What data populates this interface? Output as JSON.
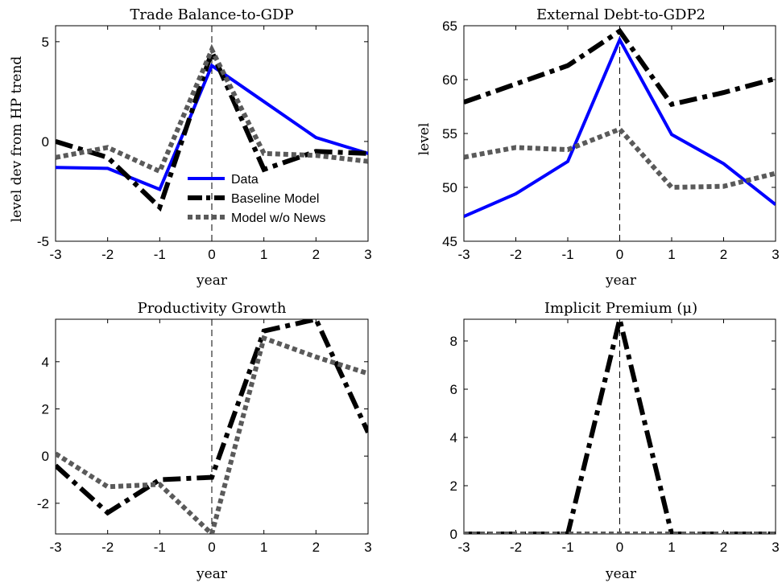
{
  "chart_data": [
    {
      "type": "line",
      "title": "Trade Balance-to-GDP",
      "xlabel": "year",
      "ylabel": "level dev from HP trend",
      "xlim": [
        -3,
        3
      ],
      "ylim": [
        -5,
        5.8
      ],
      "xticks": [
        "-3",
        "-2",
        "-1",
        "0",
        "1",
        "2",
        "3"
      ],
      "yticks": [
        -5,
        0,
        5
      ],
      "ytick_labels": [
        "-5",
        "0",
        "5"
      ],
      "x": [
        -3,
        -2,
        -1,
        0,
        1,
        2,
        3
      ],
      "legend": "inside lower-center",
      "series": [
        {
          "name": "Data",
          "style": "solid",
          "color": "#0000ff",
          "values": [
            -1.3,
            -1.35,
            -2.4,
            3.8,
            2.0,
            0.2,
            -0.6
          ]
        },
        {
          "name": "Baseline Model",
          "style": "dashdot",
          "color": "#000000",
          "values": [
            0.0,
            -0.8,
            -3.3,
            4.5,
            -1.4,
            -0.5,
            -0.6
          ]
        },
        {
          "name": "Model w/o News",
          "style": "dotted",
          "color": "#5a5a5a",
          "values": [
            -0.8,
            -0.3,
            -1.5,
            4.6,
            -0.6,
            -0.7,
            -1.0
          ]
        }
      ]
    },
    {
      "type": "line",
      "title": "External Debt-to-GDP2",
      "xlabel": "year",
      "ylabel": "level",
      "xlim": [
        -3,
        3
      ],
      "ylim": [
        45,
        65
      ],
      "xticks": [
        "-3",
        "-2",
        "-1",
        "0",
        "1",
        "2",
        "3"
      ],
      "yticks": [
        45,
        50,
        55,
        60,
        65
      ],
      "ytick_labels": [
        "45",
        "50",
        "55",
        "60",
        "65"
      ],
      "x": [
        -3,
        -2,
        -1,
        0,
        1,
        2,
        3
      ],
      "series": [
        {
          "style": "solid",
          "color": "#0000ff",
          "values": [
            47.3,
            49.4,
            52.4,
            63.7,
            54.9,
            52.2,
            48.4
          ]
        },
        {
          "style": "dashdot",
          "color": "#000000",
          "values": [
            57.9,
            59.6,
            61.3,
            64.5,
            57.7,
            58.8,
            60.1
          ]
        },
        {
          "style": "dotted",
          "color": "#5a5a5a",
          "values": [
            52.8,
            53.7,
            53.5,
            55.4,
            50.0,
            50.1,
            51.3
          ]
        }
      ]
    },
    {
      "type": "line",
      "title": "Productivity Growth",
      "xlabel": "year",
      "ylabel": "",
      "xlim": [
        -3,
        3
      ],
      "ylim": [
        -3.3,
        5.8
      ],
      "xticks": [
        "-3",
        "-2",
        "-1",
        "0",
        "1",
        "2",
        "3"
      ],
      "yticks": [
        -2,
        0,
        2,
        4
      ],
      "ytick_labels": [
        "-2",
        "0",
        "2",
        "4"
      ],
      "x": [
        -3,
        -2,
        -1,
        0,
        1,
        2,
        3
      ],
      "series": [
        {
          "style": "dashdot",
          "color": "#000000",
          "values": [
            -0.4,
            -2.4,
            -1.0,
            -0.9,
            5.3,
            5.8,
            1.0
          ]
        },
        {
          "style": "dotted",
          "color": "#5a5a5a",
          "values": [
            0.1,
            -1.3,
            -1.2,
            -3.3,
            5.0,
            4.2,
            3.5
          ]
        }
      ]
    },
    {
      "type": "line",
      "title": "Implicit Premium (μ)",
      "xlabel": "year",
      "ylabel": "",
      "xlim": [
        -3,
        3
      ],
      "ylim": [
        0,
        8.9
      ],
      "xticks": [
        "-3",
        "-2",
        "-1",
        "0",
        "1",
        "2",
        "3"
      ],
      "yticks": [
        0,
        2,
        4,
        6,
        8
      ],
      "ytick_labels": [
        "0",
        "2",
        "4",
        "6",
        "8"
      ],
      "x": [
        -3,
        -2,
        -1,
        0,
        1,
        2,
        3
      ],
      "series": [
        {
          "style": "dashdot",
          "color": "#000000",
          "values": [
            0,
            0,
            0,
            8.9,
            0,
            0,
            0
          ]
        },
        {
          "style": "dotted",
          "color": "#5a5a5a",
          "values": [
            0,
            0,
            0,
            0,
            0,
            0,
            0
          ]
        }
      ]
    }
  ]
}
